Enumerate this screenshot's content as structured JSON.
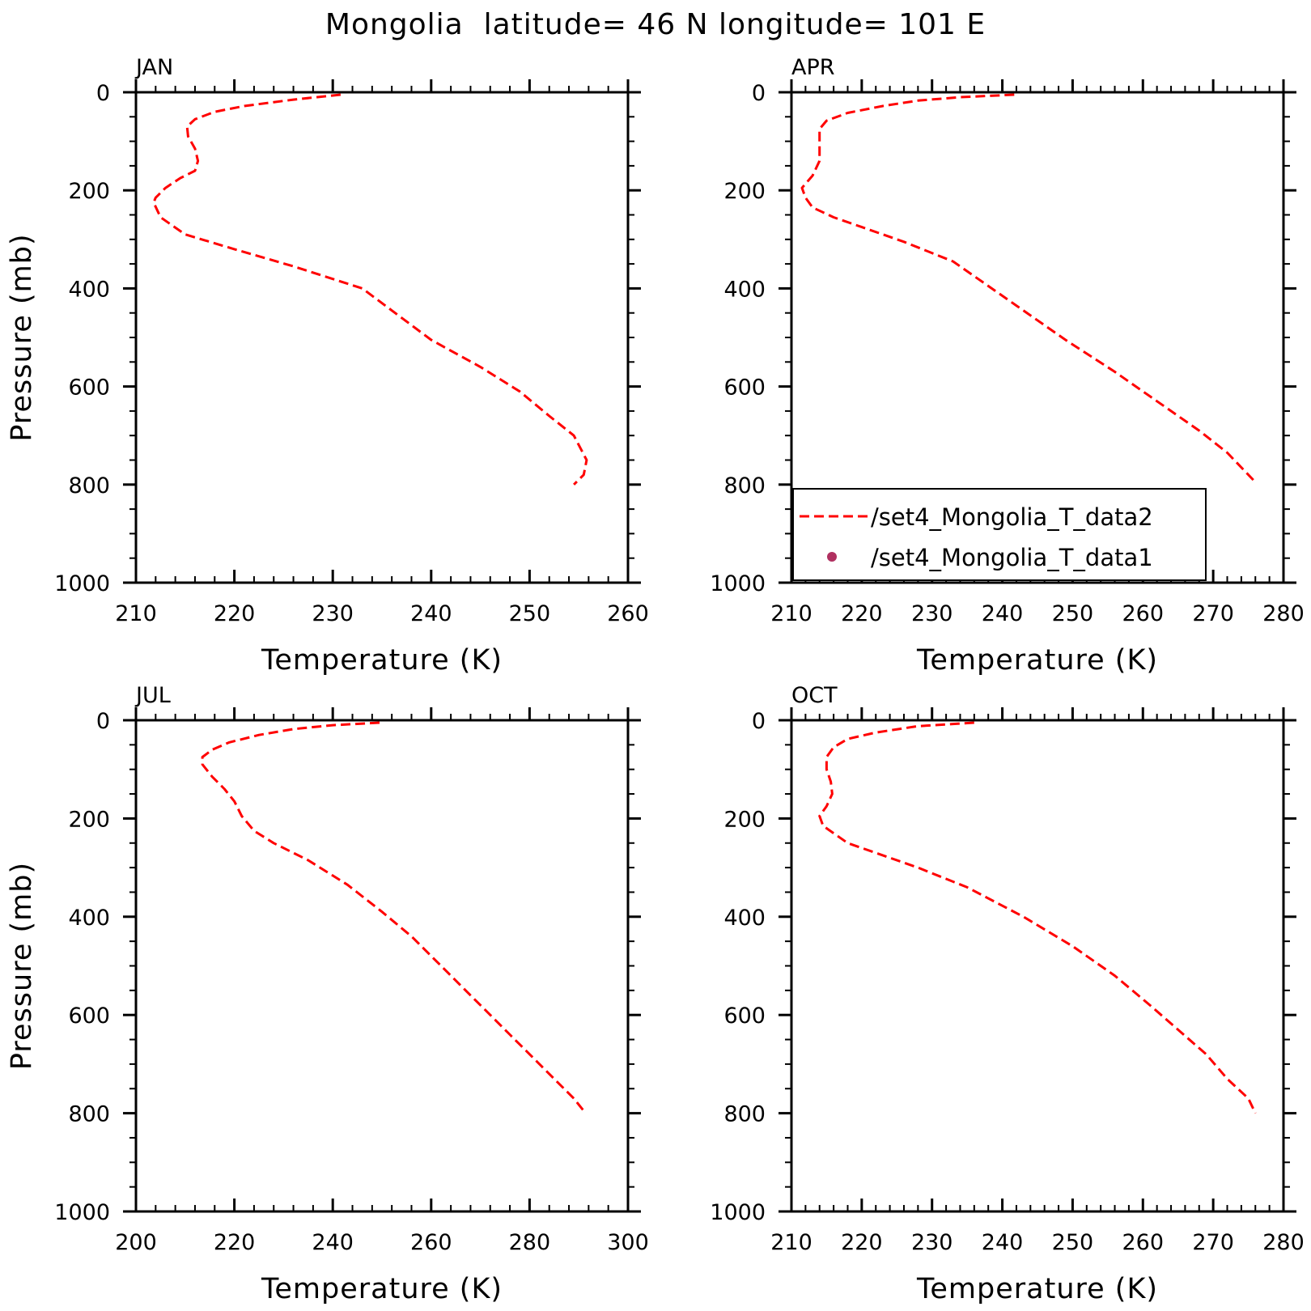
{
  "figure": {
    "title": "Mongolia  latitude= 46 N longitude= 101 E"
  },
  "colors": {
    "data2_line": "#ff0000",
    "data1_marker": "#b03060",
    "axes": "#000000"
  },
  "legend": {
    "panel": 1,
    "entries": [
      {
        "label": "/set4_Mongolia_T_data2",
        "style": "dashed-line",
        "color": "#ff0000"
      },
      {
        "label": "/set4_Mongolia_T_data1",
        "style": "dot-marker",
        "color": "#b03060"
      }
    ]
  },
  "chart_data": [
    {
      "type": "line",
      "panel_label": "JAN",
      "xlabel": "Temperature (K)",
      "ylabel": "Pressure (mb)",
      "xlim": [
        210,
        260
      ],
      "ylim": [
        1000,
        0
      ],
      "xticks": [
        210,
        220,
        230,
        240,
        250,
        260
      ],
      "yticks": [
        0,
        200,
        400,
        600,
        800,
        1000
      ],
      "y_inverted": true,
      "series": [
        {
          "name": "/set4_Mongolia_T_data2",
          "style": "dashed",
          "points": [
            [
              230.8,
              5
            ],
            [
              226,
              15
            ],
            [
              221,
              28
            ],
            [
              218,
              40
            ],
            [
              216,
              55
            ],
            [
              215.2,
              70
            ],
            [
              215.3,
              90
            ],
            [
              216,
              115
            ],
            [
              216.3,
              140
            ],
            [
              216,
              160
            ],
            [
              214.5,
              175
            ],
            [
              213,
              195
            ],
            [
              212,
              215
            ],
            [
              211.8,
              225
            ],
            [
              212.5,
              255
            ],
            [
              215,
              290
            ],
            [
              220,
              320
            ],
            [
              226,
              355
            ],
            [
              233,
              400
            ],
            [
              240,
              505
            ],
            [
              245,
              560
            ],
            [
              249,
              610
            ],
            [
              252,
              660
            ],
            [
              254.5,
              700
            ],
            [
              255.8,
              750
            ],
            [
              255.5,
              780
            ],
            [
              254.5,
              800
            ]
          ]
        }
      ]
    },
    {
      "type": "line",
      "panel_label": "APR",
      "xlabel": "Temperature (K)",
      "ylabel": "",
      "xlim": [
        210,
        280
      ],
      "ylim": [
        1000,
        0
      ],
      "xticks": [
        210,
        220,
        230,
        240,
        250,
        260,
        270,
        280
      ],
      "yticks": [
        0,
        200,
        400,
        600,
        800,
        1000
      ],
      "y_inverted": true,
      "series": [
        {
          "name": "/set4_Mongolia_T_data2",
          "style": "dashed",
          "points": [
            [
              241.7,
              5
            ],
            [
              234,
              10
            ],
            [
              228,
              17
            ],
            [
              223,
              28
            ],
            [
              218,
              42
            ],
            [
              215,
              58
            ],
            [
              214,
              75
            ],
            [
              214,
              110
            ],
            [
              214,
              140
            ],
            [
              213,
              170
            ],
            [
              211.5,
              195
            ],
            [
              212,
              215
            ],
            [
              213,
              235
            ],
            [
              216,
              255
            ],
            [
              220,
              275
            ],
            [
              226,
              305
            ],
            [
              233,
              345
            ],
            [
              242,
              435
            ],
            [
              249,
              505
            ],
            [
              256,
              570
            ],
            [
              262,
              630
            ],
            [
              268,
              690
            ],
            [
              272,
              735
            ],
            [
              276,
              795
            ]
          ]
        }
      ]
    },
    {
      "type": "line",
      "panel_label": "JUL",
      "xlabel": "Temperature (K)",
      "ylabel": "Pressure (mb)",
      "xlim": [
        200,
        300
      ],
      "ylim": [
        1000,
        0
      ],
      "xticks": [
        200,
        220,
        240,
        260,
        280,
        300
      ],
      "yticks": [
        0,
        200,
        400,
        600,
        800,
        1000
      ],
      "y_inverted": true,
      "series": [
        {
          "name": "/set4_Mongolia_T_data2",
          "style": "dashed",
          "points": [
            [
              249.5,
              5
            ],
            [
              240,
              10
            ],
            [
              232,
              18
            ],
            [
              225,
              30
            ],
            [
              219,
              45
            ],
            [
              215.5,
              60
            ],
            [
              213.5,
              75
            ],
            [
              213.5,
              90
            ],
            [
              215.5,
              115
            ],
            [
              218,
              140
            ],
            [
              220,
              165
            ],
            [
              221.5,
              195
            ],
            [
              224,
              225
            ],
            [
              228,
              250
            ],
            [
              235,
              285
            ],
            [
              243,
              335
            ],
            [
              250,
              390
            ],
            [
              256,
              440
            ],
            [
              261,
              490
            ],
            [
              266,
              540
            ],
            [
              271,
              590
            ],
            [
              276,
              640
            ],
            [
              281,
              690
            ],
            [
              285,
              730
            ],
            [
              289,
              770
            ],
            [
              291,
              795
            ]
          ]
        }
      ]
    },
    {
      "type": "line",
      "panel_label": "OCT",
      "xlabel": "Temperature (K)",
      "ylabel": "",
      "xlim": [
        210,
        280
      ],
      "ylim": [
        1000,
        0
      ],
      "xticks": [
        210,
        220,
        230,
        240,
        250,
        260,
        270,
        280
      ],
      "yticks": [
        0,
        200,
        400,
        600,
        800,
        1000
      ],
      "y_inverted": true,
      "series": [
        {
          "name": "/set4_Mongolia_T_data2",
          "style": "dashed",
          "points": [
            [
              236,
              5
            ],
            [
              228,
              12
            ],
            [
              222,
              25
            ],
            [
              218,
              38
            ],
            [
              216,
              55
            ],
            [
              215,
              75
            ],
            [
              215,
              100
            ],
            [
              215.6,
              125
            ],
            [
              215.8,
              150
            ],
            [
              215,
              175
            ],
            [
              214,
              195
            ],
            [
              214.5,
              215
            ],
            [
              216,
              230
            ],
            [
              218,
              250
            ],
            [
              222,
              270
            ],
            [
              228,
              300
            ],
            [
              235,
              340
            ],
            [
              243,
              400
            ],
            [
              250,
              460
            ],
            [
              256,
              520
            ],
            [
              261,
              580
            ],
            [
              265,
              630
            ],
            [
              269,
              680
            ],
            [
              272,
              730
            ],
            [
              275,
              770
            ],
            [
              276,
              800
            ]
          ]
        }
      ]
    }
  ]
}
